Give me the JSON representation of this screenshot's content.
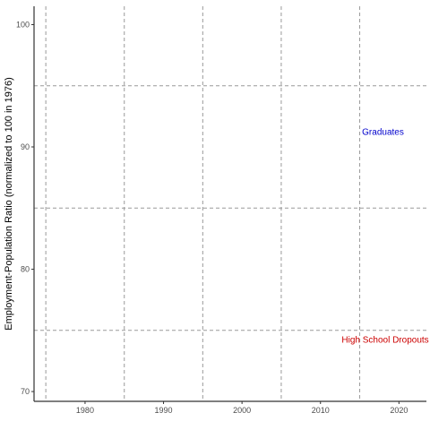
{
  "chart_data": {
    "type": "line",
    "title": "",
    "xlabel": "",
    "ylabel": "Employment-Population Ratio (normalized to 100 in 1976)",
    "xlim": [
      1973.5,
      2023.5
    ],
    "ylim": [
      69.2,
      101.5
    ],
    "x_ticks": [
      1980,
      1990,
      2000,
      2010,
      2020
    ],
    "y_ticks": [
      70,
      80,
      90,
      100
    ],
    "grid": {
      "vertical_dashed_x": [
        1975,
        1985,
        1995,
        2005,
        2015
      ],
      "horizontal_dashed_y": [
        75,
        85,
        95
      ]
    },
    "series": [],
    "annotations": [
      {
        "text": "Graduates",
        "x": 2015.3,
        "y": 91,
        "color": "#0000cc"
      },
      {
        "text": "High School Dropouts",
        "x": 2012.7,
        "y": 74,
        "color": "#cc0000"
      }
    ],
    "colors": {
      "axis_line": "#333333",
      "gridline": "#9a9a9a"
    }
  }
}
